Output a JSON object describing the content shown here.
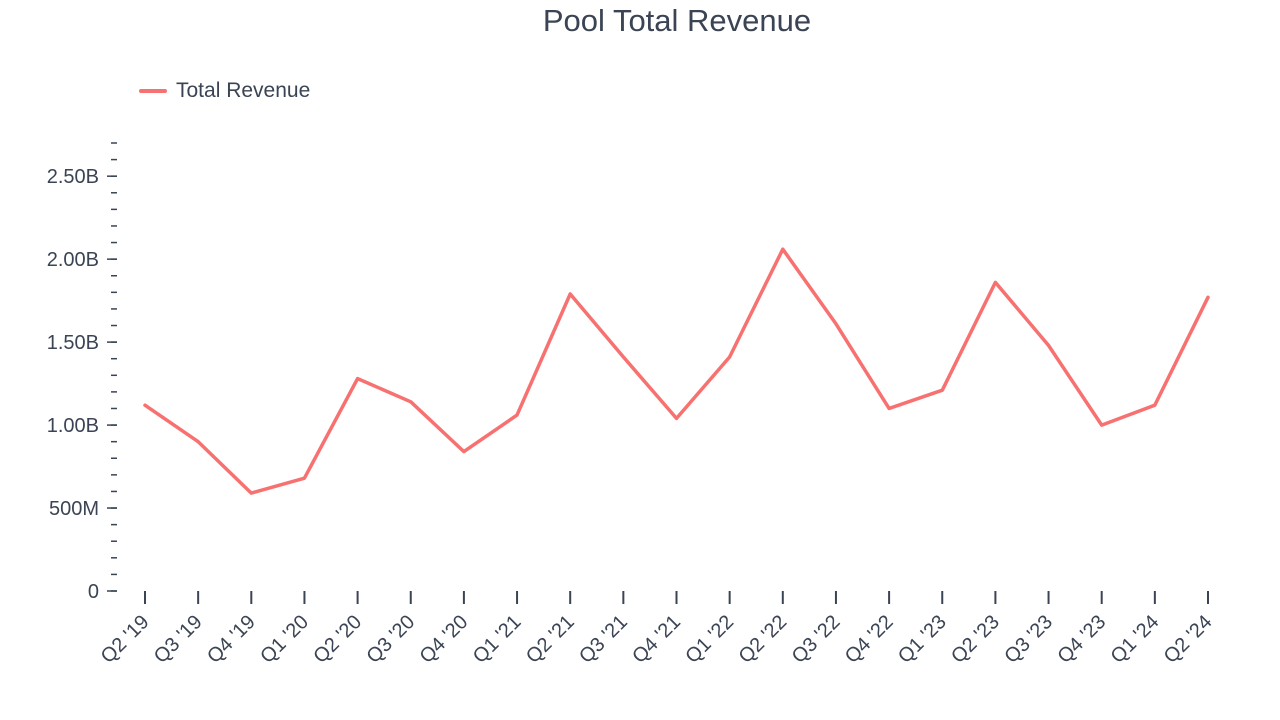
{
  "chart_data": {
    "type": "line",
    "title": "Pool Total Revenue",
    "xlabel": "",
    "ylabel": "",
    "categories": [
      "Q2 '19",
      "Q3 '19",
      "Q4 '19",
      "Q1 '20",
      "Q2 '20",
      "Q3 '20",
      "Q4 '20",
      "Q1 '21",
      "Q2 '21",
      "Q3 '21",
      "Q4 '21",
      "Q1 '22",
      "Q2 '22",
      "Q3 '22",
      "Q4 '22",
      "Q1 '23",
      "Q2 '23",
      "Q3 '23",
      "Q4 '23",
      "Q1 '24",
      "Q2 '24"
    ],
    "series": [
      {
        "name": "Total Revenue",
        "color": "#f87171",
        "values": [
          1.12,
          0.9,
          0.59,
          0.68,
          1.28,
          1.14,
          0.84,
          1.06,
          1.79,
          1.41,
          1.04,
          1.41,
          2.06,
          1.61,
          1.1,
          1.21,
          1.86,
          1.48,
          1.0,
          1.12,
          1.77
        ]
      }
    ],
    "unit": "B",
    "ylim": [
      0,
      2.7
    ],
    "yticks": [
      0,
      0.5,
      1.0,
      1.5,
      2.0,
      2.5
    ],
    "ytick_labels": [
      "0",
      "500M",
      "1.00B",
      "1.50B",
      "2.00B",
      "2.50B"
    ],
    "y_minor_step": 0.1,
    "grid": false,
    "legend_position": "top-left"
  }
}
